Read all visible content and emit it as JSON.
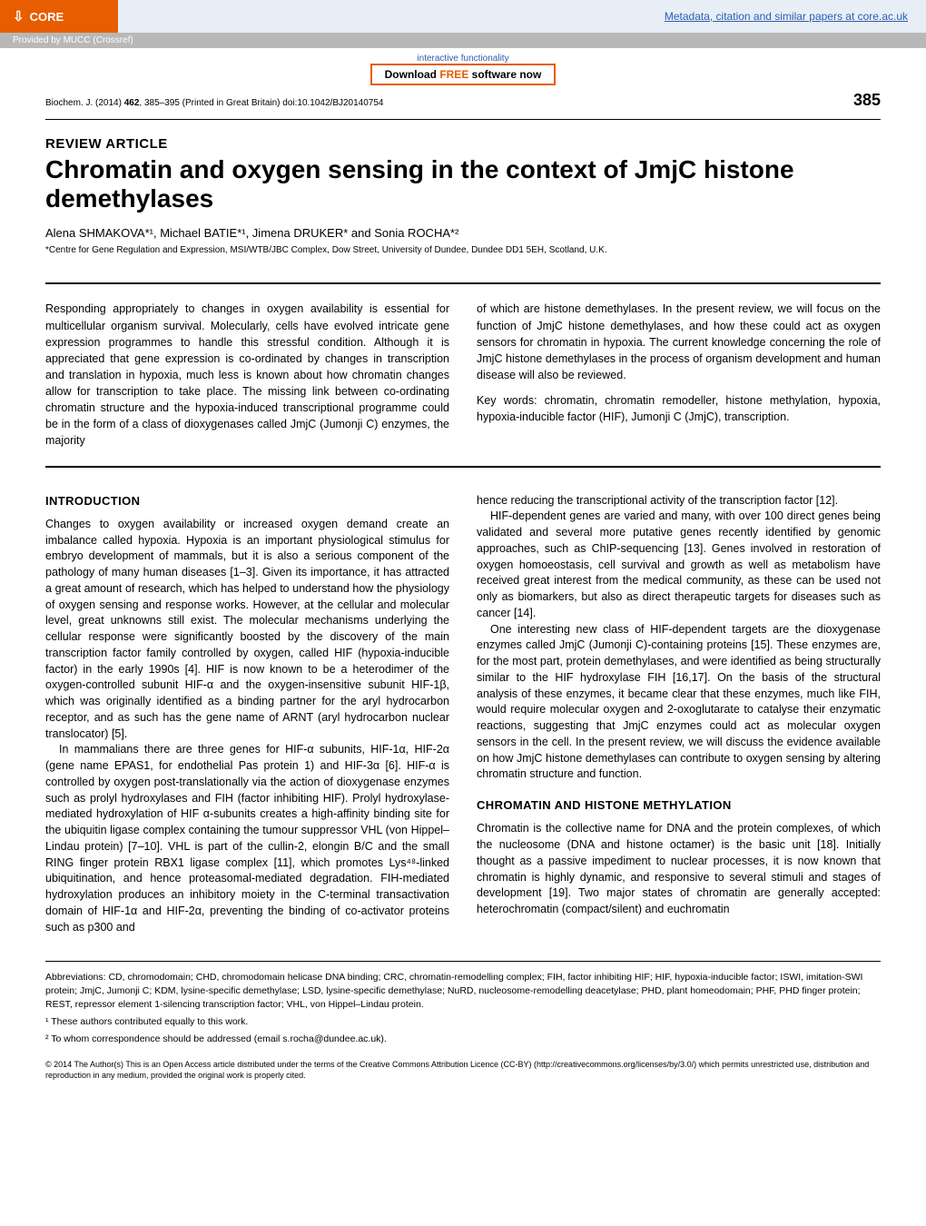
{
  "banner": {
    "core_label": "CORE",
    "right_link": "Metadata, citation and similar papers at core.ac.uk",
    "sub_text": "Provided by MUCC (Crossref)"
  },
  "software": {
    "line1": "interactive functionality",
    "btn_prefix": "Download ",
    "btn_free": "FREE",
    "btn_suffix": " software now"
  },
  "header": {
    "journal": "Biochem. J. (2014) ",
    "volume": "462",
    "pages": ", 385–395 (Printed in Great Britain)   doi:10.1042/BJ20140754",
    "page_num": "385"
  },
  "article": {
    "review_label": "REVIEW ARTICLE",
    "title": "Chromatin and oxygen sensing in the context of JmjC histone demethylases",
    "authors": "Alena SHMAKOVA*¹, Michael BATIE*¹, Jimena DRUKER* and Sonia ROCHA*²",
    "affiliation": "*Centre for Gene Regulation and Expression, MSI/WTB/JBC Complex, Dow Street, University of Dundee, Dundee DD1 5EH, Scotland, U.K."
  },
  "abstract": {
    "left": "Responding appropriately to changes in oxygen availability is essential for multicellular organism survival. Molecularly, cells have evolved intricate gene expression programmes to handle this stressful condition. Although it is appreciated that gene expression is co-ordinated by changes in transcription and translation in hypoxia, much less is known about how chromatin changes allow for transcription to take place. The missing link between co-ordinating chromatin structure and the hypoxia-induced transcriptional programme could be in the form of a class of dioxygenases called JmjC (Jumonji C) enzymes, the majority",
    "right_p1": "of which are histone demethylases. In the present review, we will focus on the function of JmjC histone demethylases, and how these could act as oxygen sensors for chromatin in hypoxia. The current knowledge concerning the role of JmjC histone demethylases in the process of organism development and human disease will also be reviewed.",
    "right_p2": "Key words: chromatin, chromatin remodeller, histone methylation, hypoxia, hypoxia-inducible factor (HIF), Jumonji C (JmjC), transcription."
  },
  "sections": {
    "intro_head": "INTRODUCTION",
    "intro_p1": "Changes to oxygen availability or increased oxygen demand create an imbalance called hypoxia. Hypoxia is an important physiological stimulus for embryo development of mammals, but it is also a serious component of the pathology of many human diseases [1–3]. Given its importance, it has attracted a great amount of research, which has helped to understand how the physiology of oxygen sensing and response works. However, at the cellular and molecular level, great unknowns still exist. The molecular mechanisms underlying the cellular response were significantly boosted by the discovery of the main transcription factor family controlled by oxygen, called HIF (hypoxia-inducible factor) in the early 1990s [4]. HIF is now known to be a heterodimer of the oxygen-controlled subunit HIF-α and the oxygen-insensitive subunit HIF-1β, which was originally identified as a binding partner for the aryl hydrocarbon receptor, and as such has the gene name of ARNT (aryl hydrocarbon nuclear translocator) [5].",
    "intro_p2": "In mammalians there are three genes for HIF-α subunits, HIF-1α, HIF-2α (gene name EPAS1, for endothelial Pas protein 1) and HIF-3α [6]. HIF-α is controlled by oxygen post-translationally via the action of dioxygenase enzymes such as prolyl hydroxylases and FIH (factor inhibiting HIF). Prolyl hydroxylase-mediated hydroxylation of HIF α-subunits creates a high-affinity binding site for the ubiquitin ligase complex containing the tumour suppressor VHL (von Hippel–Lindau protein) [7–10]. VHL is part of the cullin-2, elongin B/C and the small RING finger protein RBX1 ligase complex [11], which promotes Lys⁴⁸-linked ubiquitination, and hence proteasomal-mediated degradation. FIH-mediated hydroxylation produces an inhibitory moiety in the C-terminal transactivation domain of HIF-1α and HIF-2α, preventing the binding of co-activator proteins such as p300 and",
    "right_p1": "hence reducing the transcriptional activity of the transcription factor [12].",
    "right_p2": "HIF-dependent genes are varied and many, with over 100 direct genes being validated and several more putative genes recently identified by genomic approaches, such as ChIP-sequencing [13]. Genes involved in restoration of oxygen homoeostasis, cell survival and growth as well as metabolism have received great interest from the medical community, as these can be used not only as biomarkers, but also as direct therapeutic targets for diseases such as cancer [14].",
    "right_p3": "One interesting new class of HIF-dependent targets are the dioxygenase enzymes called JmjC (Jumonji C)-containing proteins [15]. These enzymes are, for the most part, protein demethylases, and were identified as being structurally similar to the HIF hydroxylase FIH [16,17]. On the basis of the structural analysis of these enzymes, it became clear that these enzymes, much like FIH, would require molecular oxygen and 2-oxoglutarate to catalyse their enzymatic reactions, suggesting that JmjC enzymes could act as molecular oxygen sensors in the cell. In the present review, we will discuss the evidence available on how JmjC histone demethylases can contribute to oxygen sensing by altering chromatin structure and function.",
    "chrom_head": "CHROMATIN AND HISTONE METHYLATION",
    "chrom_p1": "Chromatin is the collective name for DNA and the protein complexes, of which the nucleosome (DNA and histone octamer) is the basic unit [18]. Initially thought as a passive impediment to nuclear processes, it is now known that chromatin is highly dynamic, and responsive to several stimuli and stages of development [19]. Two major states of chromatin are generally accepted: heterochromatin (compact/silent) and euchromatin"
  },
  "footer": {
    "abbr": "Abbreviations: CD, chromodomain; CHD, chromodomain helicase DNA binding; CRC, chromatin-remodelling complex; FIH, factor inhibiting HIF; HIF, hypoxia-inducible factor; ISWI, imitation-SWI protein; JmjC, Jumonji C; KDM, lysine-specific demethylase; LSD, lysine-specific demethylase; NuRD, nucleosome-remodelling deacetylase; PHD, plant homeodomain; PHF, PHD finger protein; REST, repressor element 1-silencing transcription factor; VHL, von Hippel–Lindau protein.",
    "fn1": "¹ These authors contributed equally to this work.",
    "fn2": "² To whom correspondence should be addressed (email s.rocha@dundee.ac.uk).",
    "cc": "© 2014 The Author(s) This is an Open Access article distributed under the terms of the Creative Commons Attribution Licence (CC-BY) (http://creativecommons.org/licenses/by/3.0/) which permits unrestricted use, distribution and reproduction in any medium, provided the original work is properly cited."
  }
}
